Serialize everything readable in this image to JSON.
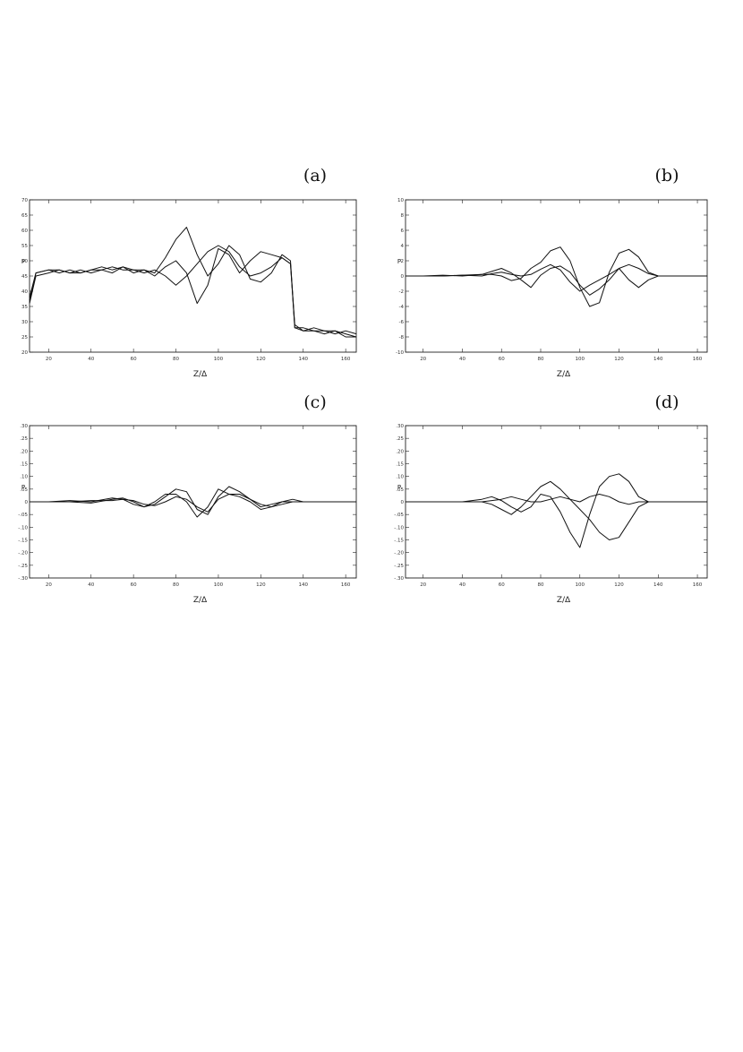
{
  "chart_data": [
    {
      "panel": "(a)",
      "type": "line",
      "xlabel": "Z/Δ",
      "ylabel": "P",
      "xlim": [
        11,
        165
      ],
      "ylim": [
        20,
        70
      ],
      "xticks": [
        20,
        40,
        60,
        80,
        100,
        120,
        140,
        160
      ],
      "xtick_labels": [
        "20",
        "40",
        "60",
        "80",
        "100",
        "120",
        "140",
        "160"
      ],
      "yticks": [
        20,
        25,
        30,
        35,
        40,
        45,
        50,
        55,
        60,
        65,
        70
      ],
      "ytick_labels": [
        "20",
        "25",
        "30",
        "35",
        "40",
        "45",
        "50",
        "55",
        "60",
        "65",
        "70"
      ],
      "series": [
        {
          "x": [
            11,
            14,
            20,
            25,
            30,
            35,
            40,
            45,
            50,
            55,
            60,
            65,
            70,
            75,
            80,
            85,
            90,
            95,
            100,
            105,
            110,
            115,
            120,
            125,
            130,
            134,
            136,
            140,
            145,
            150,
            155,
            160,
            165
          ],
          "y": [
            37,
            46,
            47,
            46,
            47,
            46,
            47,
            48,
            47,
            48,
            46,
            47,
            46,
            51,
            57,
            61,
            52,
            45,
            49,
            55,
            52,
            44,
            43,
            46,
            52,
            50,
            28,
            27,
            27,
            26,
            27,
            26,
            25
          ]
        },
        {
          "x": [
            11,
            14,
            20,
            25,
            30,
            35,
            40,
            45,
            50,
            55,
            60,
            65,
            70,
            75,
            80,
            85,
            90,
            95,
            100,
            105,
            110,
            115,
            120,
            125,
            130,
            134,
            136,
            140,
            145,
            150,
            155,
            160,
            165
          ],
          "y": [
            38,
            46,
            47,
            47,
            46,
            47,
            46,
            47,
            48,
            47,
            47,
            46,
            47,
            45,
            42,
            45,
            49,
            53,
            55,
            53,
            48,
            45,
            46,
            48,
            51,
            49,
            29,
            27,
            28,
            27,
            26,
            27,
            26
          ]
        },
        {
          "x": [
            11,
            14,
            20,
            25,
            30,
            35,
            40,
            45,
            50,
            55,
            60,
            65,
            70,
            75,
            80,
            85,
            90,
            95,
            100,
            105,
            110,
            115,
            120,
            125,
            130,
            134,
            136,
            140,
            145,
            150,
            155,
            160,
            165
          ],
          "y": [
            36,
            45,
            46,
            47,
            46,
            46,
            47,
            47,
            46,
            48,
            47,
            47,
            45,
            48,
            50,
            46,
            36,
            42,
            54,
            52,
            46,
            50,
            53,
            52,
            51,
            49,
            28,
            28,
            27,
            27,
            27,
            25,
            25
          ]
        }
      ]
    },
    {
      "panel": "(b)",
      "type": "line",
      "xlabel": "Z/Δ",
      "ylabel": "P",
      "xlim": [
        11,
        165
      ],
      "ylim": [
        -10,
        10
      ],
      "xticks": [
        20,
        40,
        60,
        80,
        100,
        120,
        140,
        160
      ],
      "xtick_labels": [
        "20",
        "40",
        "60",
        "80",
        "100",
        "120",
        "140",
        "160"
      ],
      "yticks": [
        -10,
        -8,
        -6,
        -4,
        -2,
        0,
        2,
        4,
        6,
        8,
        10
      ],
      "ytick_labels": [
        "-10",
        "-8",
        "-6",
        "-4",
        "-2",
        "0",
        "2",
        "4",
        "6",
        "8",
        "10"
      ],
      "series": [
        {
          "x": [
            11,
            20,
            30,
            40,
            50,
            55,
            60,
            65,
            70,
            75,
            80,
            85,
            90,
            95,
            100,
            105,
            110,
            115,
            120,
            125,
            130,
            135,
            140,
            150,
            165
          ],
          "y": [
            0,
            0,
            0,
            0.1,
            0.2,
            0.2,
            0,
            -0.6,
            -0.3,
            1,
            1.8,
            3.3,
            3.8,
            2,
            -1.5,
            -4,
            -3.5,
            0.5,
            3,
            3.5,
            2.5,
            0.5,
            0,
            0,
            0
          ]
        },
        {
          "x": [
            11,
            20,
            30,
            40,
            50,
            55,
            60,
            65,
            70,
            75,
            80,
            85,
            90,
            95,
            100,
            105,
            110,
            115,
            120,
            125,
            130,
            135,
            140,
            150,
            165
          ],
          "y": [
            0,
            0,
            0.1,
            0,
            0.2,
            0.6,
            1,
            0.4,
            -0.5,
            -1.5,
            0.1,
            1,
            1.3,
            0.5,
            -1.2,
            -2.5,
            -1.7,
            -0.5,
            1,
            1.5,
            1,
            0.3,
            0,
            0,
            0
          ]
        },
        {
          "x": [
            11,
            20,
            30,
            40,
            50,
            55,
            60,
            65,
            70,
            75,
            80,
            85,
            90,
            95,
            100,
            105,
            110,
            115,
            120,
            125,
            130,
            135,
            140,
            150,
            165
          ],
          "y": [
            0,
            0,
            0,
            0.1,
            0,
            0.3,
            0.5,
            0.2,
            0,
            0.2,
            0.9,
            1.5,
            0.8,
            -0.8,
            -2,
            -1.2,
            -0.5,
            0.2,
            1,
            -0.5,
            -1.5,
            -0.5,
            0,
            0,
            0
          ]
        }
      ]
    },
    {
      "panel": "(c)",
      "type": "line",
      "xlabel": "Z/Δ",
      "ylabel": "P",
      "xlim": [
        11,
        165
      ],
      "ylim": [
        -0.3,
        0.3
      ],
      "xticks": [
        20,
        40,
        60,
        80,
        100,
        120,
        140,
        160
      ],
      "xtick_labels": [
        "20",
        "40",
        "60",
        "80",
        "100",
        "120",
        "140",
        "160"
      ],
      "yticks": [
        -0.3,
        -0.25,
        -0.2,
        -0.15,
        -0.1,
        -0.05,
        0,
        0.05,
        0.1,
        0.15,
        0.2,
        0.25,
        0.3
      ],
      "ytick_labels": [
        "-.30",
        "-.25",
        "-.20",
        "-.15",
        "-.10",
        "-.05",
        "0",
        ".05",
        ".10",
        ".15",
        ".20",
        ".25",
        ".30"
      ],
      "series": [
        {
          "x": [
            11,
            20,
            30,
            40,
            50,
            55,
            60,
            65,
            70,
            75,
            80,
            85,
            90,
            95,
            100,
            105,
            110,
            115,
            120,
            125,
            130,
            135,
            140,
            150,
            165
          ],
          "y": [
            0,
            0,
            0,
            -0.005,
            0.01,
            0.015,
            0,
            -0.02,
            -0.01,
            0.02,
            0.05,
            0.04,
            -0.03,
            -0.05,
            0.02,
            0.06,
            0.04,
            0.01,
            -0.02,
            -0.01,
            0,
            0,
            0,
            0,
            0
          ]
        },
        {
          "x": [
            11,
            20,
            30,
            40,
            50,
            55,
            60,
            65,
            70,
            75,
            80,
            85,
            90,
            95,
            100,
            105,
            110,
            115,
            120,
            125,
            130,
            135,
            140,
            150,
            165
          ],
          "y": [
            0,
            0,
            0.005,
            0,
            0.015,
            0.01,
            -0.01,
            -0.02,
            0,
            0.03,
            0.03,
            0,
            -0.06,
            -0.02,
            0.05,
            0.03,
            0.02,
            0,
            -0.03,
            -0.02,
            0,
            0.01,
            0,
            0,
            0
          ]
        },
        {
          "x": [
            11,
            20,
            30,
            40,
            50,
            55,
            60,
            65,
            70,
            75,
            80,
            85,
            90,
            95,
            100,
            105,
            110,
            115,
            120,
            125,
            130,
            135,
            140,
            150,
            165
          ],
          "y": [
            0,
            0,
            0,
            0.005,
            0.005,
            0.01,
            0.005,
            -0.01,
            -0.015,
            0,
            0.02,
            0.01,
            -0.02,
            -0.04,
            0.01,
            0.03,
            0.03,
            0.01,
            -0.01,
            -0.02,
            -0.01,
            0,
            0,
            0,
            0
          ]
        }
      ]
    },
    {
      "panel": "(d)",
      "type": "line",
      "xlabel": "Z/Δ",
      "ylabel": "P",
      "xlim": [
        11,
        165
      ],
      "ylim": [
        -0.3,
        0.3
      ],
      "xticks": [
        20,
        40,
        60,
        80,
        100,
        120,
        140,
        160
      ],
      "xtick_labels": [
        "20",
        "40",
        "60",
        "80",
        "100",
        "120",
        "140",
        "160"
      ],
      "yticks": [
        -0.3,
        -0.25,
        -0.2,
        -0.15,
        -0.1,
        -0.05,
        0,
        0.05,
        0.1,
        0.15,
        0.2,
        0.25,
        0.3
      ],
      "ytick_labels": [
        "-.30",
        "-.25",
        "-.20",
        "-.15",
        "-.10",
        "-.05",
        "0",
        ".05",
        ".10",
        ".15",
        ".20",
        ".25",
        ".30"
      ],
      "series": [
        {
          "x": [
            11,
            20,
            30,
            40,
            50,
            55,
            60,
            65,
            70,
            75,
            80,
            85,
            90,
            95,
            100,
            105,
            110,
            115,
            120,
            125,
            130,
            135,
            140,
            150,
            165
          ],
          "y": [
            0,
            0,
            0,
            0,
            0,
            -0.01,
            -0.03,
            -0.05,
            -0.02,
            0.02,
            0.06,
            0.08,
            0.05,
            0.01,
            -0.03,
            -0.07,
            -0.12,
            -0.15,
            -0.14,
            -0.08,
            -0.02,
            0,
            0,
            0,
            0
          ]
        },
        {
          "x": [
            11,
            20,
            30,
            40,
            50,
            55,
            60,
            65,
            70,
            75,
            80,
            85,
            90,
            95,
            100,
            105,
            110,
            115,
            120,
            125,
            130,
            135,
            140,
            150,
            165
          ],
          "y": [
            0,
            0,
            0,
            0,
            0.01,
            0.02,
            0.005,
            -0.02,
            -0.04,
            -0.02,
            0.03,
            0.02,
            -0.04,
            -0.12,
            -0.18,
            -0.05,
            0.06,
            0.1,
            0.11,
            0.08,
            0.02,
            0,
            0,
            0,
            0
          ]
        },
        {
          "x": [
            11,
            20,
            30,
            40,
            50,
            55,
            60,
            65,
            70,
            75,
            80,
            85,
            90,
            95,
            100,
            105,
            110,
            115,
            120,
            125,
            130,
            135,
            140,
            150,
            165
          ],
          "y": [
            0,
            0,
            0,
            0,
            0,
            0.005,
            0.01,
            0.02,
            0.01,
            0,
            0,
            0.01,
            0.02,
            0.01,
            0,
            0.02,
            0.03,
            0.02,
            0,
            -0.01,
            0,
            0,
            0,
            0,
            0
          ]
        }
      ]
    }
  ]
}
